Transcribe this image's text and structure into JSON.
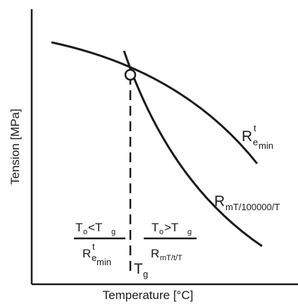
{
  "axes": {
    "x_label": "Temperature [°C]",
    "y_label": "Tension  [MPa]"
  },
  "curves": {
    "yield": {
      "base": "R",
      "sup": "t",
      "sub": "e",
      "subsub": "min"
    },
    "creep": {
      "base": "R",
      "sub": "mT/100000/T"
    }
  },
  "markers": {
    "intersection": "Tg",
    "tg_base": "T",
    "tg_sub": "g"
  },
  "regions": {
    "left": {
      "num_a": "T",
      "num_a_sub": "o",
      "num_op": "<T",
      "num_b_sub": "g",
      "den_base": "R",
      "den_sup": "t",
      "den_sub": "e",
      "den_subsub": "min"
    },
    "right": {
      "num_a": "T",
      "num_a_sub": "o",
      "num_op": ">T",
      "num_b_sub": "g",
      "den_base": "R",
      "den_sub": "mT/t/T"
    }
  }
}
